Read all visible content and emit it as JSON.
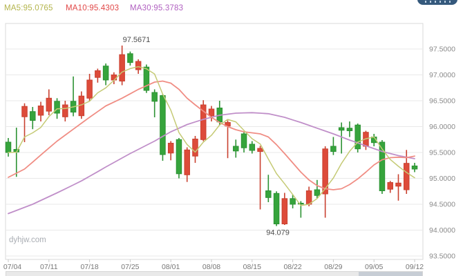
{
  "header": {
    "ma_labels": [
      {
        "name": "MA5",
        "text": "MA5:95.0765",
        "color": "#b3b44b"
      },
      {
        "name": "MA10",
        "text": "MA10:95.4303",
        "color": "#e14747"
      },
      {
        "name": "MA30",
        "text": "MA30:95.3783",
        "color": "#b05fc0"
      }
    ],
    "badge_color": "#35597c"
  },
  "watermark": "dyhjw.com",
  "chart_data": {
    "type": "candlestick",
    "title": "",
    "convention": "red = up candle, green = down candle",
    "y_axis": {
      "ticks": [
        "97.5000",
        "97.0000",
        "96.5000",
        "96.0000",
        "95.5000",
        "95.0000",
        "94.5000",
        "94.0000",
        "93.5000"
      ],
      "min": 93.5,
      "max": 97.5,
      "grid": true
    },
    "x_axis": {
      "labels": [
        "07/04",
        "07/11",
        "07/18",
        "07/25",
        "08/01",
        "08/08",
        "08/15",
        "08/22",
        "08/29",
        "09/05",
        "09/12"
      ],
      "label_every": 5
    },
    "annotations": {
      "high_label": "97.5671",
      "low_label": "94.079"
    },
    "colors": {
      "up": "#dd4b3a",
      "up_stroke": "#c9402f",
      "down": "#36a43c",
      "down_stroke": "#2c9233",
      "ma5": "#c5ca75",
      "ma10": "#f08d84",
      "ma30": "#c08fc9",
      "grid": "#e9e9e9",
      "box": "#d9d9d9",
      "axis_text": "#8a8a8a",
      "annotation_text": "#4d4d4d",
      "watermark": "#a9adb3"
    },
    "dates": [
      "07/04",
      "07/05",
      "07/06",
      "07/07",
      "07/08",
      "07/11",
      "07/12",
      "07/13",
      "07/14",
      "07/15",
      "07/18",
      "07/19",
      "07/20",
      "07/21",
      "07/22",
      "07/25",
      "07/26",
      "07/27",
      "07/28",
      "07/29",
      "08/01",
      "08/02",
      "08/03",
      "08/04",
      "08/05",
      "08/08",
      "08/09",
      "08/10",
      "08/11",
      "08/12",
      "08/15",
      "08/16",
      "08/17",
      "08/18",
      "08/19",
      "08/22",
      "08/23",
      "08/24",
      "08/25",
      "08/26",
      "08/29",
      "08/30",
      "08/31",
      "09/01",
      "09/02",
      "09/05",
      "09/06",
      "09/07",
      "09/08",
      "09/09",
      "09/12"
    ],
    "ohlc": [
      [
        95.7,
        95.78,
        95.42,
        95.5
      ],
      [
        95.56,
        95.98,
        95.03,
        95.51
      ],
      [
        96.19,
        96.45,
        95.7,
        96.39
      ],
      [
        96.29,
        96.38,
        95.95,
        96.12
      ],
      [
        96.22,
        96.48,
        96.1,
        96.4
      ],
      [
        96.3,
        96.72,
        96.22,
        96.55
      ],
      [
        96.49,
        96.55,
        96.15,
        96.26
      ],
      [
        96.19,
        96.5,
        96.1,
        96.42
      ],
      [
        96.49,
        96.97,
        96.2,
        96.28
      ],
      [
        96.21,
        96.68,
        96.15,
        96.59
      ],
      [
        96.55,
        97.02,
        96.5,
        96.9
      ],
      [
        96.95,
        97.12,
        96.85,
        97.08
      ],
      [
        97.17,
        97.22,
        96.8,
        96.9
      ],
      [
        96.9,
        97.05,
        96.82,
        97.0
      ],
      [
        96.88,
        97.5671,
        96.8,
        97.39
      ],
      [
        97.41,
        97.45,
        97.18,
        97.24
      ],
      [
        97.1,
        97.3,
        97.02,
        97.26
      ],
      [
        97.15,
        97.2,
        96.65,
        96.7
      ],
      [
        96.66,
        96.72,
        96.18,
        96.49
      ],
      [
        96.6,
        96.63,
        95.34,
        95.46
      ],
      [
        95.49,
        95.72,
        95.35,
        95.68
      ],
      [
        95.75,
        95.78,
        95.0,
        95.09
      ],
      [
        95.07,
        95.6,
        94.93,
        95.55
      ],
      [
        95.43,
        95.82,
        95.3,
        95.76
      ],
      [
        95.75,
        96.51,
        95.72,
        96.42
      ],
      [
        96.21,
        96.4,
        96.1,
        96.34
      ],
      [
        96.36,
        96.5,
        96.02,
        96.09
      ],
      [
        96.01,
        96.12,
        95.39,
        96.08
      ],
      [
        95.62,
        95.75,
        95.4,
        95.53
      ],
      [
        95.86,
        95.9,
        95.5,
        95.59
      ],
      [
        95.66,
        95.72,
        95.48,
        95.54
      ],
      [
        95.52,
        95.63,
        94.4,
        95.58
      ],
      [
        94.76,
        95.07,
        94.54,
        94.63
      ],
      [
        94.71,
        94.75,
        94.079,
        94.12
      ],
      [
        94.12,
        94.72,
        94.1,
        94.61
      ],
      [
        94.61,
        94.68,
        94.42,
        94.5
      ],
      [
        94.52,
        94.56,
        94.24,
        94.51
      ],
      [
        94.5,
        94.84,
        94.46,
        94.76
      ],
      [
        94.78,
        94.97,
        94.62,
        94.67
      ],
      [
        94.7,
        95.62,
        94.24,
        95.57
      ],
      [
        95.62,
        95.8,
        95.45,
        95.52
      ],
      [
        95.98,
        96.08,
        95.48,
        95.93
      ],
      [
        95.97,
        96.1,
        95.8,
        95.92
      ],
      [
        96.03,
        96.06,
        95.5,
        95.57
      ],
      [
        95.62,
        95.92,
        95.55,
        95.89
      ],
      [
        95.8,
        95.86,
        95.62,
        95.69
      ],
      [
        95.7,
        95.74,
        94.7,
        94.76
      ],
      [
        94.79,
        94.95,
        94.72,
        94.92
      ],
      [
        94.85,
        95.08,
        94.57,
        94.91
      ],
      [
        94.78,
        95.55,
        94.7,
        95.29
      ],
      [
        95.24,
        95.3,
        95.12,
        95.18
      ]
    ],
    "ma10_points": [
      [
        0,
        95.02
      ],
      [
        2,
        95.18
      ],
      [
        4,
        95.45
      ],
      [
        6,
        95.72
      ],
      [
        8,
        95.95
      ],
      [
        10,
        96.18
      ],
      [
        12,
        96.4
      ],
      [
        14,
        96.55
      ],
      [
        16,
        96.72
      ],
      [
        18,
        96.86
      ],
      [
        19,
        96.88
      ],
      [
        20,
        96.84
      ],
      [
        21,
        96.72
      ],
      [
        22,
        96.55
      ],
      [
        23,
        96.42
      ],
      [
        24,
        96.3
      ],
      [
        25,
        96.18
      ],
      [
        26,
        96.08
      ],
      [
        27,
        96.0
      ],
      [
        28,
        95.94
      ],
      [
        29,
        95.9
      ],
      [
        30,
        95.88
      ],
      [
        31,
        95.86
      ],
      [
        32,
        95.8
      ],
      [
        33,
        95.65
      ],
      [
        34,
        95.48
      ],
      [
        35,
        95.3
      ],
      [
        36,
        95.12
      ],
      [
        37,
        94.97
      ],
      [
        38,
        94.86
      ],
      [
        39,
        94.8
      ],
      [
        40,
        94.78
      ],
      [
        41,
        94.8
      ],
      [
        42,
        94.88
      ],
      [
        43,
        94.99
      ],
      [
        44,
        95.12
      ],
      [
        45,
        95.26
      ],
      [
        46,
        95.36
      ],
      [
        47,
        95.4
      ],
      [
        48,
        95.41
      ],
      [
        49,
        95.4
      ],
      [
        50,
        95.43
      ]
    ],
    "ma30_points": [
      [
        0,
        94.32
      ],
      [
        3,
        94.5
      ],
      [
        6,
        94.72
      ],
      [
        9,
        94.95
      ],
      [
        12,
        95.22
      ],
      [
        15,
        95.48
      ],
      [
        18,
        95.72
      ],
      [
        20,
        95.9
      ],
      [
        22,
        96.04
      ],
      [
        24,
        96.14
      ],
      [
        26,
        96.22
      ],
      [
        28,
        96.26
      ],
      [
        30,
        96.27
      ],
      [
        32,
        96.25
      ],
      [
        34,
        96.18
      ],
      [
        36,
        96.08
      ],
      [
        38,
        95.97
      ],
      [
        40,
        95.86
      ],
      [
        42,
        95.74
      ],
      [
        44,
        95.63
      ],
      [
        46,
        95.52
      ],
      [
        48,
        95.44
      ],
      [
        50,
        95.38
      ]
    ]
  }
}
